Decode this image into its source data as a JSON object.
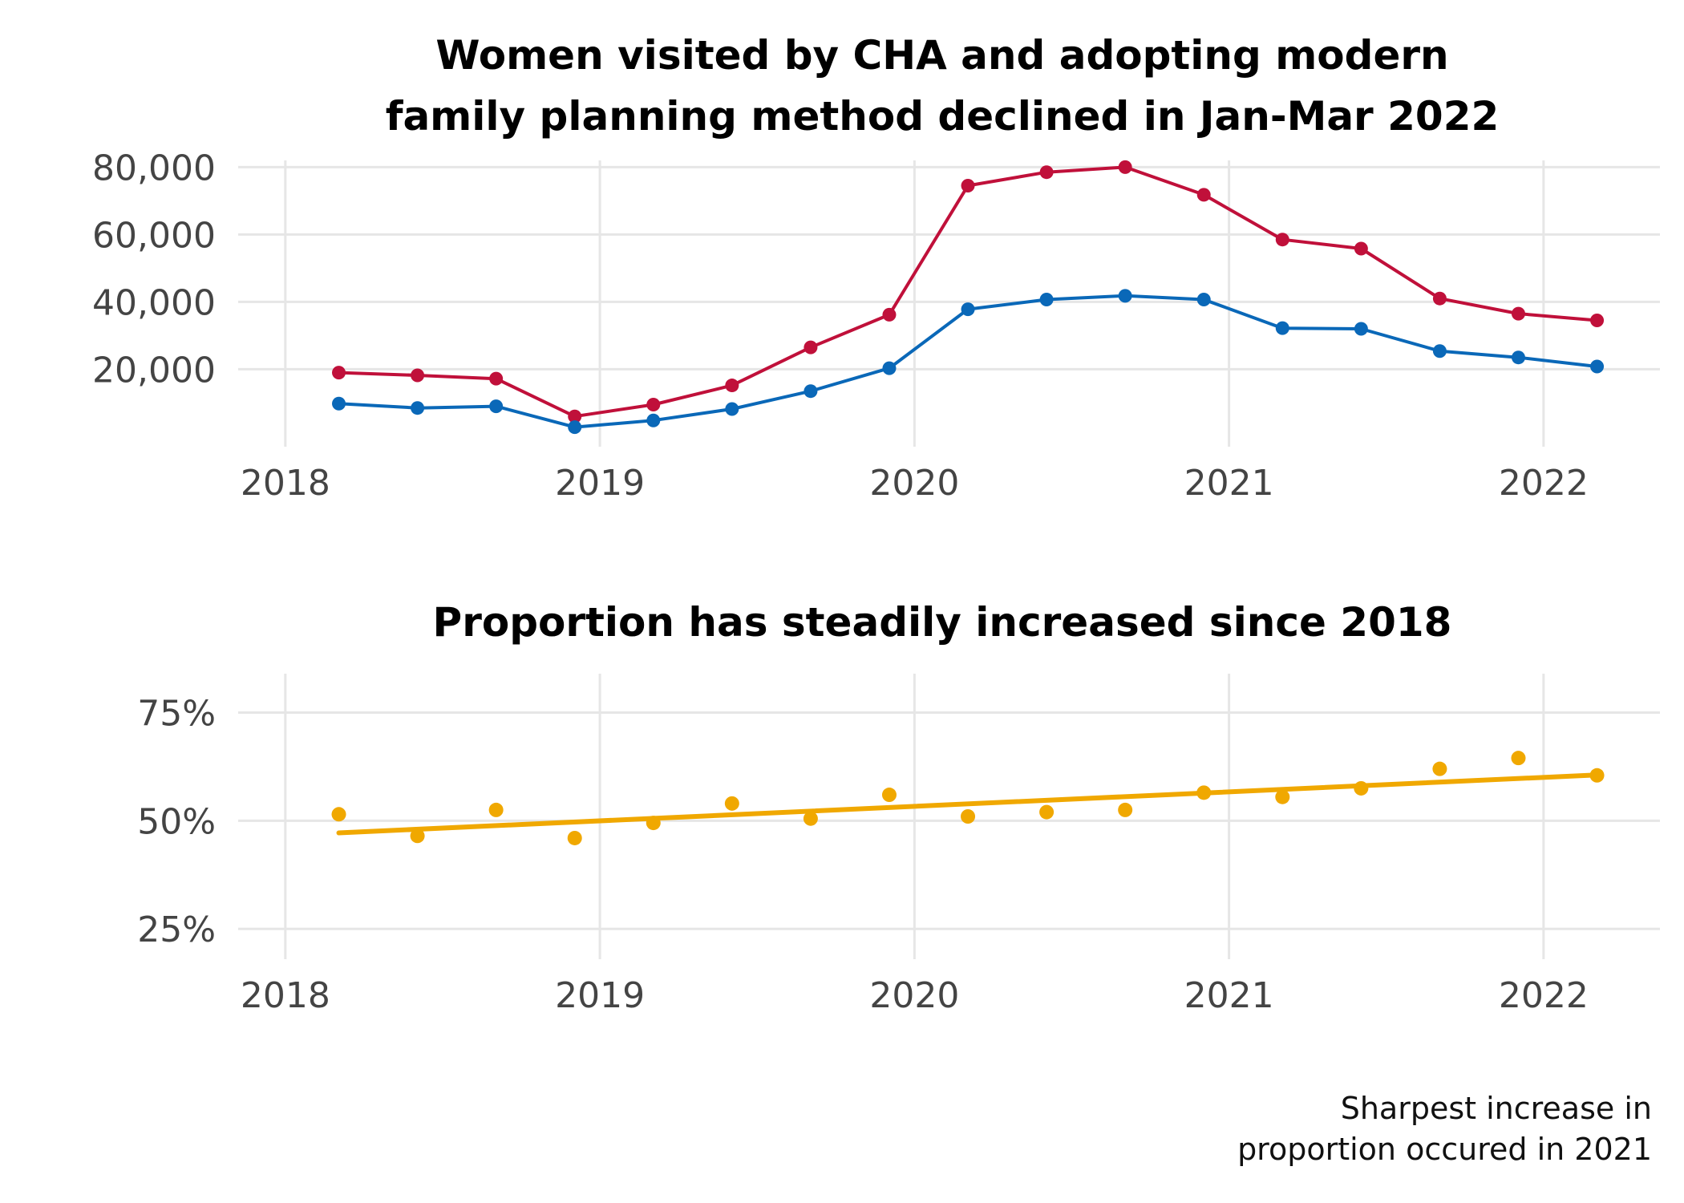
{
  "chart_data": [
    {
      "type": "line",
      "title_lines": [
        "Women visited by CHA and adopting modern",
        "family planning method declined in Jan-Mar 2022"
      ],
      "xlabel": "",
      "ylabel": "",
      "x": [
        2018.17,
        2018.42,
        2018.67,
        2018.92,
        2019.17,
        2019.42,
        2019.67,
        2019.92,
        2020.17,
        2020.42,
        2020.67,
        2020.92,
        2021.17,
        2021.42,
        2021.67,
        2021.92,
        2022.17
      ],
      "xlim": [
        2017.85,
        2022.37
      ],
      "ylim": [
        -3000,
        82000
      ],
      "x_ticks": [
        2018,
        2019,
        2020,
        2021,
        2022
      ],
      "x_tick_labels": [
        "2018",
        "2019",
        "2020",
        "2021",
        "2022"
      ],
      "y_ticks": [
        20000,
        40000,
        60000,
        80000
      ],
      "y_tick_labels": [
        "20,000",
        "40,000",
        "60,000",
        "80,000"
      ],
      "grid": true,
      "legend": "none",
      "series": [
        {
          "color": "#c0103a",
          "values": [
            19000,
            18200,
            17200,
            6000,
            9500,
            15200,
            26500,
            36200,
            74500,
            78500,
            80000,
            71800,
            58500,
            55800,
            41000,
            36500,
            34500
          ]
        },
        {
          "color": "#0a68b8",
          "values": [
            9800,
            8500,
            9000,
            2800,
            4800,
            8200,
            13500,
            20300,
            37800,
            40700,
            41800,
            40700,
            32200,
            32000,
            25400,
            23500,
            20800
          ]
        }
      ]
    },
    {
      "type": "scatter",
      "title": "Proportion has steadily increased since 2018",
      "xlabel": "",
      "ylabel": "",
      "x": [
        2018.17,
        2018.42,
        2018.67,
        2018.92,
        2019.17,
        2019.42,
        2019.67,
        2019.92,
        2020.17,
        2020.42,
        2020.67,
        2020.92,
        2021.17,
        2021.42,
        2021.67,
        2021.92,
        2022.17
      ],
      "values": [
        51.5,
        46.5,
        52.5,
        46,
        49.5,
        54,
        50.5,
        56,
        51,
        52,
        52.5,
        56.5,
        55.5,
        57.5,
        62,
        64.5,
        60.5
      ],
      "trend": {
        "x": [
          2018.17,
          2022.17
        ],
        "y": [
          47.2,
          60.6
        ]
      },
      "color": "#f0a800",
      "xlim": [
        2017.85,
        2022.37
      ],
      "ylim": [
        18,
        84
      ],
      "x_ticks": [
        2018,
        2019,
        2020,
        2021,
        2022
      ],
      "x_tick_labels": [
        "2018",
        "2019",
        "2020",
        "2021",
        "2022"
      ],
      "y_ticks": [
        25,
        50,
        75
      ],
      "y_tick_labels": [
        "25%",
        "50%",
        "75%"
      ],
      "grid": true,
      "legend": "none"
    }
  ],
  "caption_lines": [
    "Sharpest increase in",
    "proportion occured in 2021"
  ]
}
